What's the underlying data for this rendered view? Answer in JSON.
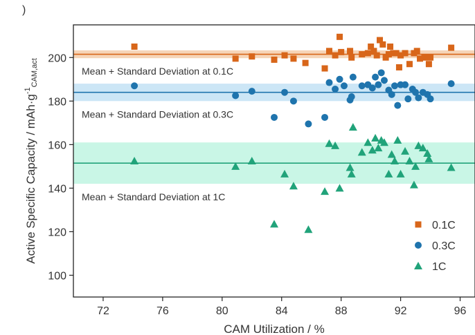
{
  "panel_label": ")",
  "chart_data": {
    "type": "scatter",
    "title": "",
    "xlabel": "CAM Utilization / %",
    "ylabel_main": "Active Specific Capacity / mAh·g",
    "ylabel_sup": "-1",
    "ylabel_sub": "CAM,act",
    "xlim": [
      70,
      97
    ],
    "ylim": [
      90,
      215
    ],
    "x_ticks": [
      72,
      76,
      80,
      84,
      88,
      92,
      96
    ],
    "y_ticks": [
      100,
      120,
      140,
      160,
      180,
      200
    ],
    "grid": false,
    "legend_position": "bottom-right",
    "series": [
      {
        "name": "0.1C",
        "marker": "square",
        "color": "#d8661a",
        "mean": 201.5,
        "std": 1.8,
        "band_color": "#f6d5b8",
        "band_label": "Mean + Standard Deviation at 0.1C",
        "points": [
          [
            74.1,
            205
          ],
          [
            80.9,
            199.5
          ],
          [
            82.0,
            200.5
          ],
          [
            83.5,
            199
          ],
          [
            84.2,
            201
          ],
          [
            84.8,
            199.5
          ],
          [
            85.6,
            197.5
          ],
          [
            86.9,
            195
          ],
          [
            87.2,
            203
          ],
          [
            87.6,
            201
          ],
          [
            87.9,
            209.5
          ],
          [
            88.0,
            202.5
          ],
          [
            88.6,
            203
          ],
          [
            88.7,
            200
          ],
          [
            89.4,
            201.5
          ],
          [
            89.8,
            202
          ],
          [
            90.0,
            205
          ],
          [
            90.2,
            203
          ],
          [
            90.4,
            201
          ],
          [
            90.6,
            208
          ],
          [
            90.8,
            206
          ],
          [
            91.0,
            200
          ],
          [
            91.2,
            201.5
          ],
          [
            91.3,
            205
          ],
          [
            91.5,
            202
          ],
          [
            91.7,
            202
          ],
          [
            91.9,
            195.5
          ],
          [
            92.0,
            201
          ],
          [
            92.3,
            202
          ],
          [
            92.6,
            197
          ],
          [
            92.9,
            202
          ],
          [
            93.1,
            203
          ],
          [
            93.3,
            199.5
          ],
          [
            93.6,
            200
          ],
          [
            93.9,
            197
          ],
          [
            94.0,
            200
          ],
          [
            95.4,
            204.5
          ]
        ]
      },
      {
        "name": "0.3C",
        "marker": "circle",
        "color": "#1f74ad",
        "mean": 184,
        "std": 4,
        "band_color": "#cce6f6",
        "band_label": "Mean + Standard Deviation at 0.3C",
        "points": [
          [
            74.1,
            187
          ],
          [
            80.9,
            182.5
          ],
          [
            82.0,
            184.5
          ],
          [
            83.5,
            172.5
          ],
          [
            84.2,
            184
          ],
          [
            84.8,
            180
          ],
          [
            85.8,
            169.5
          ],
          [
            86.9,
            172.5
          ],
          [
            87.2,
            188.5
          ],
          [
            87.6,
            185.5
          ],
          [
            87.9,
            190
          ],
          [
            88.2,
            187
          ],
          [
            88.6,
            180.5
          ],
          [
            88.7,
            182
          ],
          [
            88.8,
            191
          ],
          [
            89.4,
            187
          ],
          [
            89.8,
            187.5
          ],
          [
            90.1,
            186
          ],
          [
            90.3,
            191
          ],
          [
            90.5,
            187.5
          ],
          [
            90.7,
            193
          ],
          [
            90.9,
            189.5
          ],
          [
            91.2,
            185
          ],
          [
            91.4,
            183
          ],
          [
            91.6,
            187
          ],
          [
            91.8,
            178
          ],
          [
            92.0,
            187.5
          ],
          [
            92.3,
            187.5
          ],
          [
            92.5,
            181
          ],
          [
            92.8,
            185.5
          ],
          [
            93.0,
            184
          ],
          [
            93.2,
            181.5
          ],
          [
            93.5,
            184
          ],
          [
            93.8,
            183
          ],
          [
            94.0,
            181
          ],
          [
            95.4,
            188
          ]
        ]
      },
      {
        "name": "1C",
        "marker": "triangle",
        "color": "#21a37a",
        "mean": 151.5,
        "std": 9.5,
        "band_color": "#c9f6e6",
        "band_label": "Mean + Standard Deviation at 1C",
        "points": [
          [
            74.1,
            152.5
          ],
          [
            80.9,
            150
          ],
          [
            82.0,
            152.5
          ],
          [
            83.5,
            123.5
          ],
          [
            84.2,
            146.5
          ],
          [
            84.8,
            141
          ],
          [
            85.8,
            121
          ],
          [
            86.9,
            138.5
          ],
          [
            87.2,
            160.5
          ],
          [
            87.6,
            159.5
          ],
          [
            87.9,
            140
          ],
          [
            88.6,
            149.5
          ],
          [
            88.7,
            146.5
          ],
          [
            88.8,
            168
          ],
          [
            89.4,
            156.5
          ],
          [
            89.8,
            161
          ],
          [
            90.1,
            157.5
          ],
          [
            90.3,
            163
          ],
          [
            90.5,
            158.5
          ],
          [
            90.7,
            162
          ],
          [
            90.9,
            161
          ],
          [
            91.2,
            146.5
          ],
          [
            91.4,
            155.5
          ],
          [
            91.6,
            152.5
          ],
          [
            91.8,
            162
          ],
          [
            92.0,
            146.5
          ],
          [
            92.3,
            157
          ],
          [
            92.6,
            152.5
          ],
          [
            92.9,
            141.5
          ],
          [
            93.0,
            150
          ],
          [
            93.2,
            159.5
          ],
          [
            93.5,
            158.5
          ],
          [
            93.8,
            156
          ],
          [
            93.9,
            153.5
          ],
          [
            95.4,
            149.5
          ]
        ]
      }
    ]
  }
}
